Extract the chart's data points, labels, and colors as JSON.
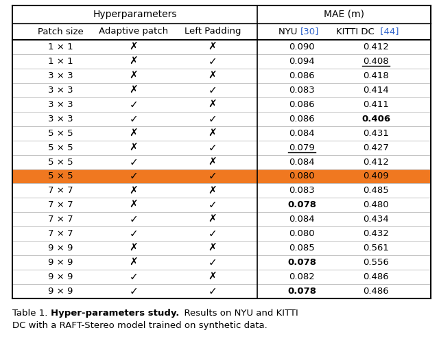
{
  "header_group1": "Hyperparameters",
  "header_group2": "MAE (m)",
  "highlight_row_0idx": 9,
  "highlight_color": "#F07820",
  "rows": [
    {
      "patch": "1 × 1",
      "adaptive": false,
      "padding": false,
      "nyu": "0.090",
      "kitti": "0.412",
      "nyu_bold": false,
      "kitti_bold": false,
      "nyu_under": false,
      "kitti_under": false
    },
    {
      "patch": "1 × 1",
      "adaptive": false,
      "padding": true,
      "nyu": "0.094",
      "kitti": "0.408",
      "nyu_bold": false,
      "kitti_bold": false,
      "nyu_under": false,
      "kitti_under": true
    },
    {
      "patch": "3 × 3",
      "adaptive": false,
      "padding": false,
      "nyu": "0.086",
      "kitti": "0.418",
      "nyu_bold": false,
      "kitti_bold": false,
      "nyu_under": false,
      "kitti_under": false
    },
    {
      "patch": "3 × 3",
      "adaptive": false,
      "padding": true,
      "nyu": "0.083",
      "kitti": "0.414",
      "nyu_bold": false,
      "kitti_bold": false,
      "nyu_under": false,
      "kitti_under": false
    },
    {
      "patch": "3 × 3",
      "adaptive": true,
      "padding": false,
      "nyu": "0.086",
      "kitti": "0.411",
      "nyu_bold": false,
      "kitti_bold": false,
      "nyu_under": false,
      "kitti_under": false
    },
    {
      "patch": "3 × 3",
      "adaptive": true,
      "padding": true,
      "nyu": "0.086",
      "kitti": "0.406",
      "nyu_bold": false,
      "kitti_bold": true,
      "nyu_under": false,
      "kitti_under": false
    },
    {
      "patch": "5 × 5",
      "adaptive": false,
      "padding": false,
      "nyu": "0.084",
      "kitti": "0.431",
      "nyu_bold": false,
      "kitti_bold": false,
      "nyu_under": false,
      "kitti_under": false
    },
    {
      "patch": "5 × 5",
      "adaptive": false,
      "padding": true,
      "nyu": "0.079",
      "kitti": "0.427",
      "nyu_bold": false,
      "kitti_bold": false,
      "nyu_under": true,
      "kitti_under": false
    },
    {
      "patch": "5 × 5",
      "adaptive": true,
      "padding": false,
      "nyu": "0.084",
      "kitti": "0.412",
      "nyu_bold": false,
      "kitti_bold": false,
      "nyu_under": false,
      "kitti_under": false
    },
    {
      "patch": "5 × 5",
      "adaptive": true,
      "padding": true,
      "nyu": "0.080",
      "kitti": "0.409",
      "nyu_bold": false,
      "kitti_bold": false,
      "nyu_under": false,
      "kitti_under": false
    },
    {
      "patch": "7 × 7",
      "adaptive": false,
      "padding": false,
      "nyu": "0.083",
      "kitti": "0.485",
      "nyu_bold": false,
      "kitti_bold": false,
      "nyu_under": false,
      "kitti_under": false
    },
    {
      "patch": "7 × 7",
      "adaptive": false,
      "padding": true,
      "nyu": "0.078",
      "kitti": "0.480",
      "nyu_bold": true,
      "kitti_bold": false,
      "nyu_under": false,
      "kitti_under": false
    },
    {
      "patch": "7 × 7",
      "adaptive": true,
      "padding": false,
      "nyu": "0.084",
      "kitti": "0.434",
      "nyu_bold": false,
      "kitti_bold": false,
      "nyu_under": false,
      "kitti_under": false
    },
    {
      "patch": "7 × 7",
      "adaptive": true,
      "padding": true,
      "nyu": "0.080",
      "kitti": "0.432",
      "nyu_bold": false,
      "kitti_bold": false,
      "nyu_under": false,
      "kitti_under": false
    },
    {
      "patch": "9 × 9",
      "adaptive": false,
      "padding": false,
      "nyu": "0.085",
      "kitti": "0.561",
      "nyu_bold": false,
      "kitti_bold": false,
      "nyu_under": false,
      "kitti_under": false
    },
    {
      "patch": "9 × 9",
      "adaptive": false,
      "padding": true,
      "nyu": "0.078",
      "kitti": "0.556",
      "nyu_bold": true,
      "kitti_bold": false,
      "nyu_under": false,
      "kitti_under": false
    },
    {
      "patch": "9 × 9",
      "adaptive": true,
      "padding": false,
      "nyu": "0.082",
      "kitti": "0.486",
      "nyu_bold": false,
      "kitti_bold": false,
      "nyu_under": false,
      "kitti_under": false
    },
    {
      "patch": "9 × 9",
      "adaptive": true,
      "padding": true,
      "nyu": "0.078",
      "kitti": "0.486",
      "nyu_bold": true,
      "kitti_bold": false,
      "nyu_under": false,
      "kitti_under": false
    }
  ]
}
